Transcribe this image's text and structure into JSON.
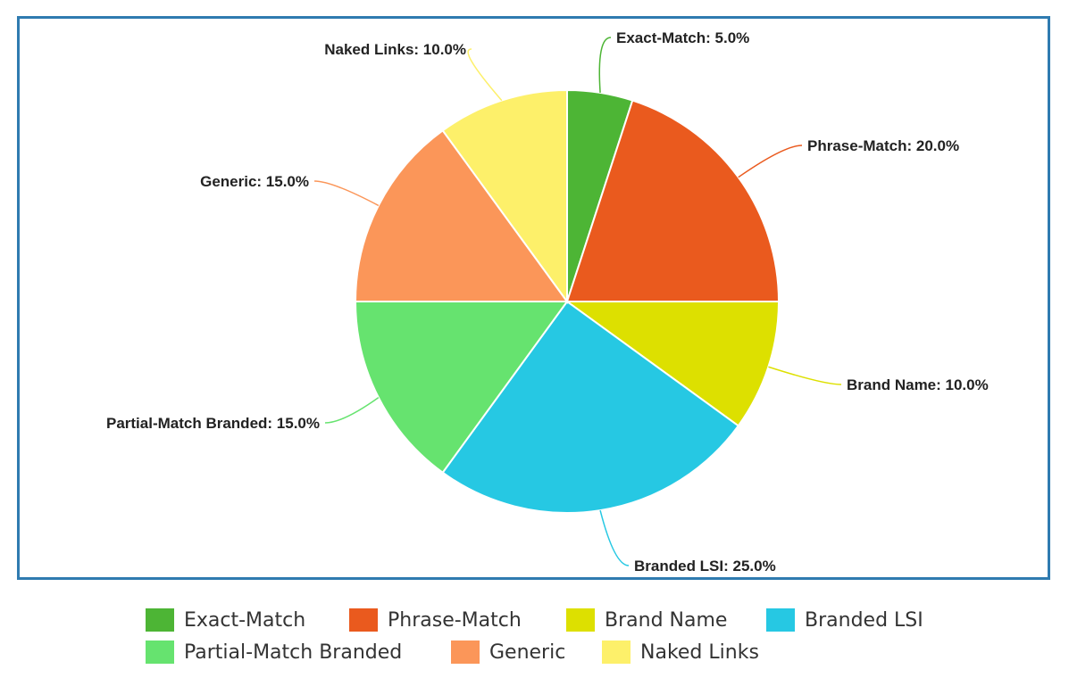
{
  "chart_data": {
    "type": "pie",
    "title": "",
    "slices": [
      {
        "label": "Exact-Match",
        "value": 5.0,
        "display": "Exact-Match: 5.0%",
        "color": "#4db535"
      },
      {
        "label": "Phrase-Match",
        "value": 20.0,
        "display": "Phrase-Match: 20.0%",
        "color": "#ea5a1e"
      },
      {
        "label": "Brand Name",
        "value": 10.0,
        "display": "Brand Name: 10.0%",
        "color": "#dde000"
      },
      {
        "label": "Branded LSI",
        "value": 25.0,
        "display": "Branded LSI: 25.0%",
        "color": "#26c8e3"
      },
      {
        "label": "Partial-Match Branded",
        "value": 15.0,
        "display": "Partial-Match Branded: 15.0%",
        "color": "#66e36f"
      },
      {
        "label": "Generic",
        "value": 15.0,
        "display": "Generic: 15.0%",
        "color": "#fb9659"
      },
      {
        "label": "Naked Links",
        "value": 10.0,
        "display": "Naked Links: 10.0%",
        "color": "#fdf06a"
      }
    ],
    "unit": "%",
    "legend_position": "bottom",
    "start_angle": "top",
    "direction": "clockwise"
  },
  "legend": {
    "items": [
      {
        "label": "Exact-Match",
        "color": "#4db535"
      },
      {
        "label": "Phrase-Match",
        "color": "#ea5a1e"
      },
      {
        "label": "Brand Name",
        "color": "#dde000"
      },
      {
        "label": "Branded LSI",
        "color": "#26c8e3"
      },
      {
        "label": "Partial-Match Branded",
        "color": "#66e36f"
      },
      {
        "label": "Generic",
        "color": "#fb9659"
      },
      {
        "label": "Naked Links",
        "color": "#fdf06a"
      }
    ]
  },
  "frame": {
    "border_color": "#2f7bb0"
  }
}
